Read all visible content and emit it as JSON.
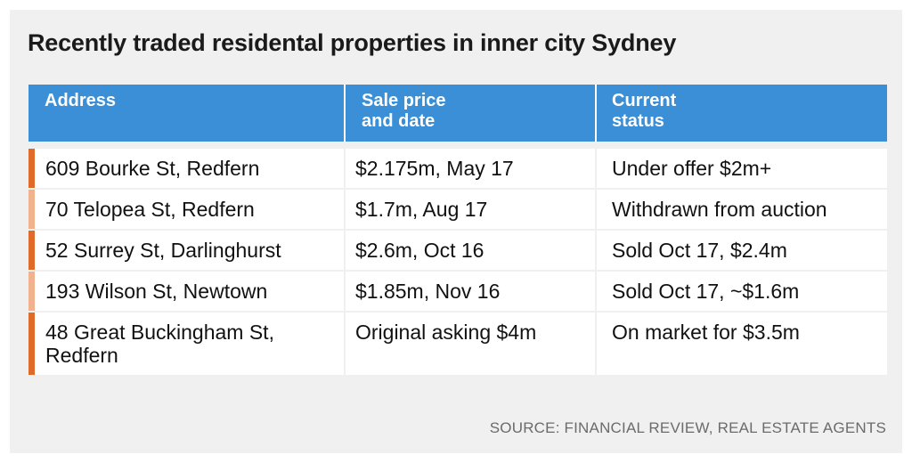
{
  "chart_data": {
    "type": "table",
    "title": "Recently traded residental properties in inner city Sydney",
    "columns": [
      "Address",
      "Sale price and date",
      "Current status"
    ],
    "column_header_lines": [
      [
        "Address"
      ],
      [
        "Sale price",
        "and date"
      ],
      [
        "Current",
        "status"
      ]
    ],
    "rows": [
      {
        "address_lines": [
          "609 Bourke St, Redfern"
        ],
        "sale": "$2.175m, May 17",
        "status": "Under offer $2m+",
        "marker": "dark"
      },
      {
        "address_lines": [
          "70 Telopea St, Redfern"
        ],
        "sale": "$1.7m, Aug 17",
        "status": "Withdrawn from auction",
        "marker": "light"
      },
      {
        "address_lines": [
          "52 Surrey St, Darlinghurst"
        ],
        "sale": "$2.6m, Oct 16",
        "status": "Sold Oct 17, $2.4m",
        "marker": "dark"
      },
      {
        "address_lines": [
          "193 Wilson St, Newtown"
        ],
        "sale": "$1.85m, Nov 16",
        "status": "Sold Oct 17, ~$1.6m",
        "marker": "light"
      },
      {
        "address_lines": [
          "48 Great Buckingham St,",
          "Redfern"
        ],
        "sale": "Original asking $4m",
        "status": "On market for $3.5m",
        "marker": "dark"
      }
    ],
    "source": "SOURCE: FINANCIAL REVIEW, REAL ESTATE AGENTS"
  },
  "colors": {
    "header_bg": "#3a8fd6",
    "marker_dark": "#e06a2a",
    "marker_light": "#f0b38e",
    "panel_bg": "#f0f0f0"
  }
}
